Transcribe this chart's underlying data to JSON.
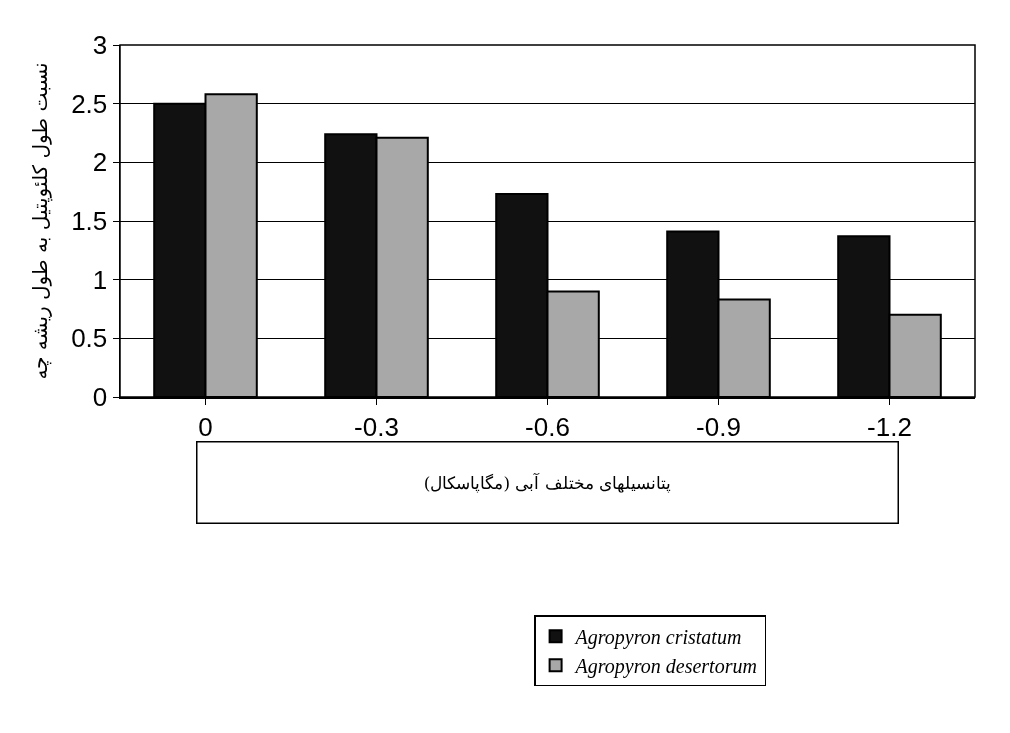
{
  "chart_data": {
    "type": "bar",
    "ylabel": "نسبت طول کلئوپتیل به طول ریشه چه",
    "xlabel": "پتانسیلهای مختلف آبی (مگاپاسکال)",
    "categories": [
      "0",
      "-0.3",
      "-0.6",
      "-0.9",
      "-1.2"
    ],
    "series": [
      {
        "name": "Agropyron cristatum",
        "color": "#111111",
        "values": [
          2.5,
          2.24,
          1.73,
          1.41,
          1.37
        ]
      },
      {
        "name": "Agropyron desertorum",
        "color": "#a8a8a8",
        "values": [
          2.58,
          2.21,
          0.9,
          0.83,
          0.7
        ]
      }
    ],
    "ylim": [
      0,
      3
    ],
    "yticks": [
      0,
      0.5,
      1,
      1.5,
      2,
      2.5,
      3
    ],
    "grid": "y",
    "legend": "bottom"
  }
}
